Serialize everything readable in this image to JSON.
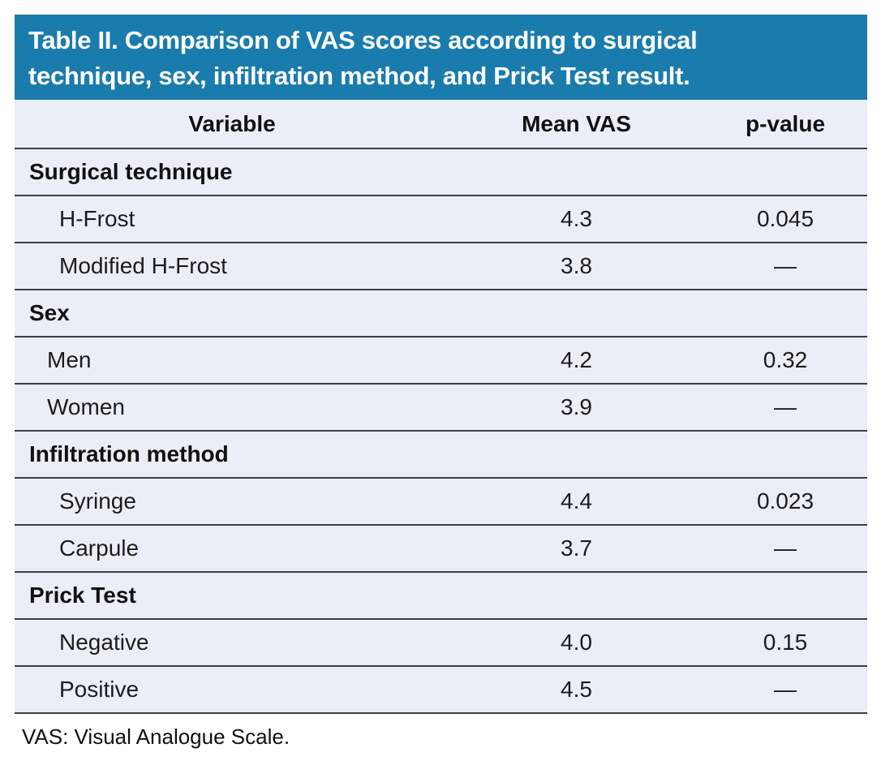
{
  "table": {
    "title": "Table II. Comparison of VAS scores according to surgical technique, sex, infiltration method, and Prick Test result.",
    "title_lines": [
      "Table II. Comparison of VAS scores according to surgical",
      "technique, sex, infiltration method, and Prick Test result."
    ],
    "columns": [
      "Variable",
      "Mean VAS",
      "p-value"
    ],
    "sections": [
      {
        "header": "Surgical technique",
        "rows": [
          {
            "label": "H-Frost",
            "mean_vas": "4.3",
            "p_value": "0.045"
          },
          {
            "label": "Modified H-Frost",
            "mean_vas": "3.8",
            "p_value": "—"
          }
        ]
      },
      {
        "header": "Sex",
        "rows": [
          {
            "label": "Men",
            "mean_vas": "4.2",
            "p_value": "0.32"
          },
          {
            "label": "Women",
            "mean_vas": "3.9",
            "p_value": "—"
          }
        ]
      },
      {
        "header": "Infiltration method",
        "rows": [
          {
            "label": "Syringe",
            "mean_vas": "4.4",
            "p_value": "0.023"
          },
          {
            "label": "Carpule",
            "mean_vas": "3.7",
            "p_value": "—"
          }
        ]
      },
      {
        "header": "Prick Test",
        "rows": [
          {
            "label": "Negative",
            "mean_vas": "4.0",
            "p_value": "0.15"
          },
          {
            "label": "Positive",
            "mean_vas": "4.5",
            "p_value": "—"
          }
        ]
      }
    ],
    "footnote": "VAS: Visual Analogue Scale."
  },
  "colors": {
    "title_bar_bg": "#1A7CAD",
    "title_text": "#FFFFFF",
    "row_bg": "#EAEEF7",
    "rule_line": "#3E3E3E",
    "body_text": "#1C1C1C"
  }
}
